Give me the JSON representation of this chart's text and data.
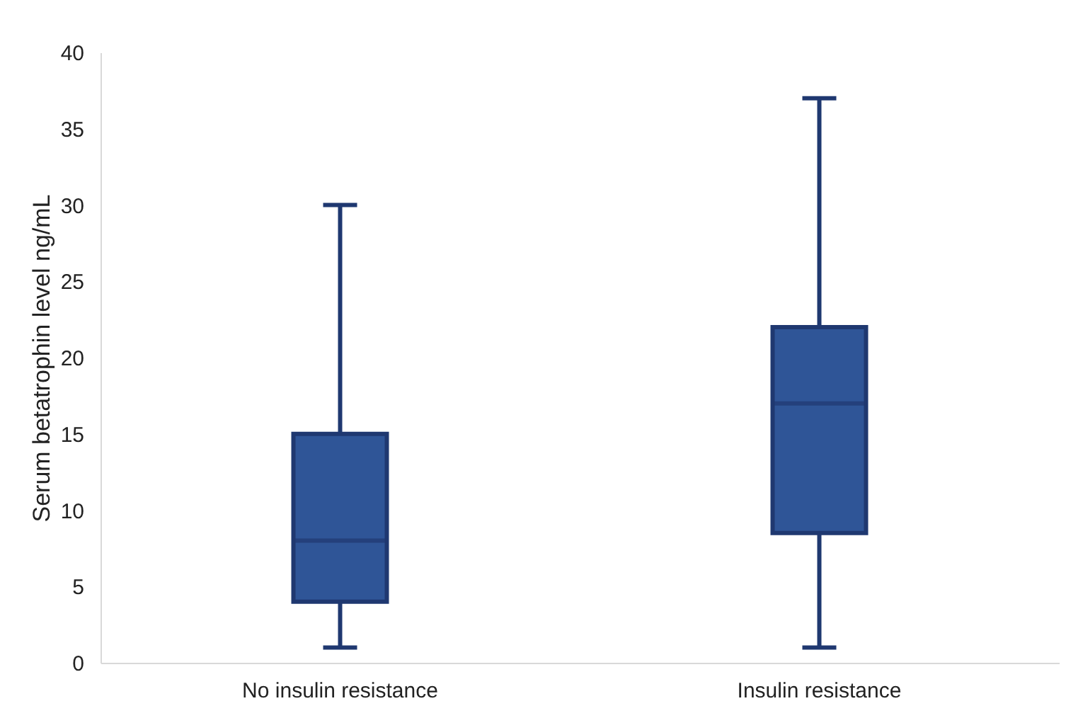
{
  "chart_data": {
    "type": "box",
    "ylabel": "Serum betatrophin level ng/mL",
    "categories": [
      "No insulin resistance",
      "Insulin resistance"
    ],
    "boxes": [
      {
        "low": 1,
        "q1": 4,
        "median": 8,
        "q3": 15,
        "high": 30
      },
      {
        "low": 1,
        "q1": 8.5,
        "median": 17,
        "q3": 22,
        "high": 37
      }
    ],
    "color": "#2f5597",
    "ylim": [
      0,
      40
    ],
    "yticks": [
      0,
      5,
      10,
      15,
      20,
      25,
      30,
      35,
      40
    ],
    "grid": false
  }
}
